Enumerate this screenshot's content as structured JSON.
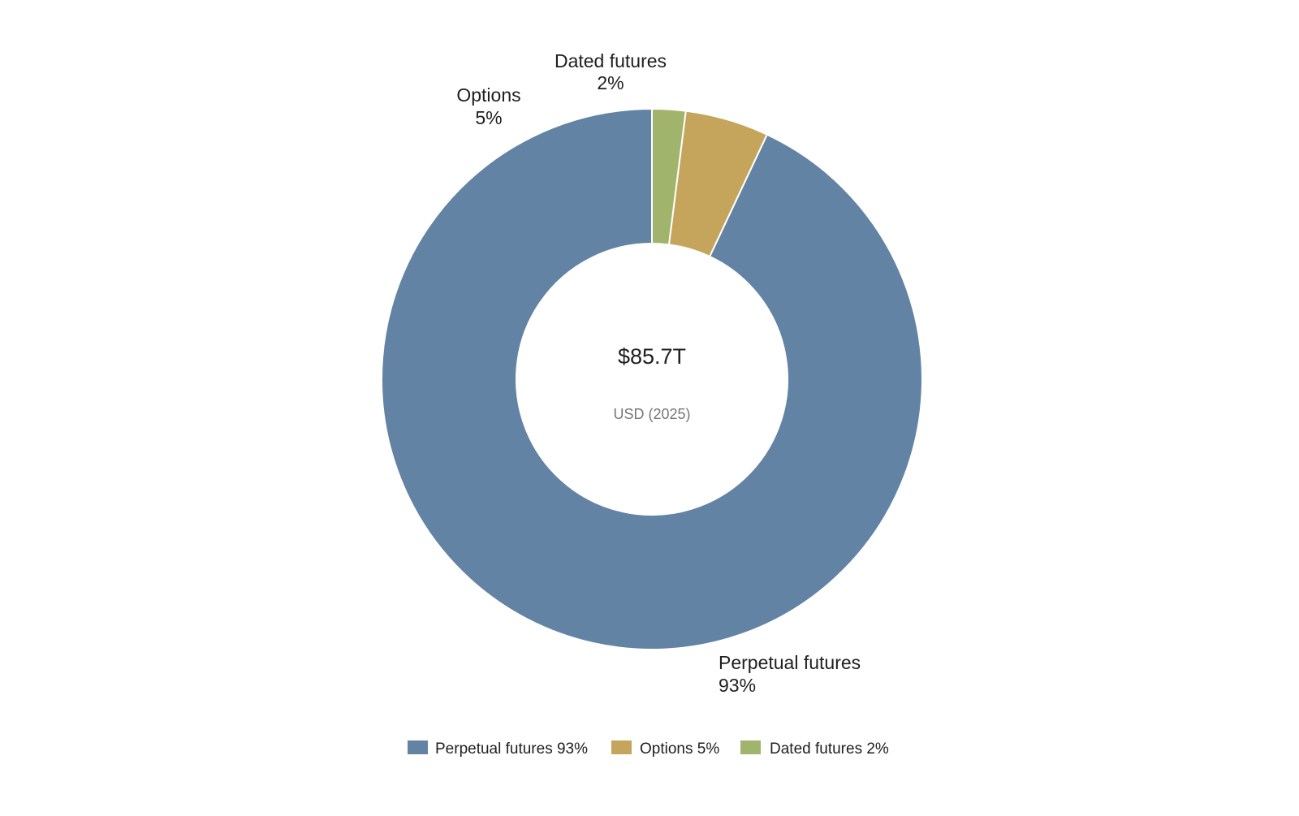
{
  "chart_data": {
    "type": "pie",
    "variant": "donut",
    "title": "",
    "center": {
      "total": "$85.7T",
      "subtitle": "USD (2025)"
    },
    "slices": [
      {
        "label": "Perpetual futures",
        "value": 93,
        "value_label": "93%",
        "color": "#6383a5"
      },
      {
        "label": "Options",
        "value": 5,
        "value_label": "5%",
        "color": "#c4a55b"
      },
      {
        "label": "Dated futures",
        "value": 2,
        "value_label": "2%",
        "color": "#a0b46c"
      }
    ],
    "legend": {
      "position": "bottom",
      "entries": [
        "Perpetual futures 93%",
        "Options 5%",
        "Dated futures 2%"
      ]
    }
  }
}
